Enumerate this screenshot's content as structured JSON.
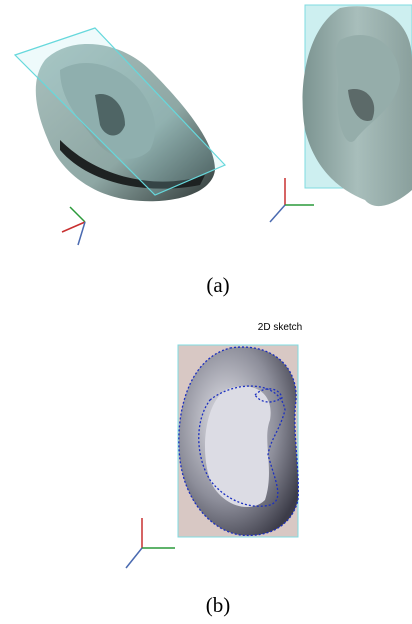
{
  "panel_a": {
    "label": "(a)"
  },
  "panel_b": {
    "label": "(b)",
    "sketch_label": "2D sketch"
  }
}
